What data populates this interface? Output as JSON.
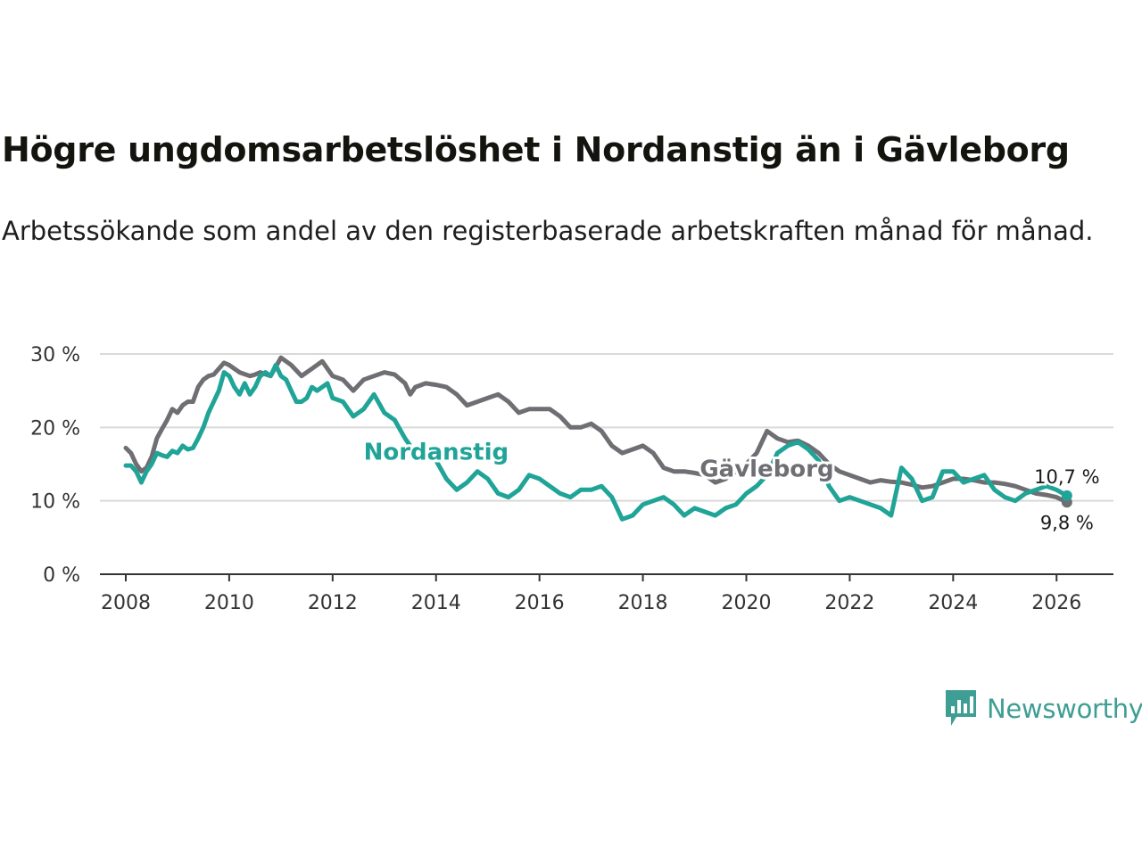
{
  "title": "Högre ungdomsarbetslöshet i Nordanstig än i Gävleborg",
  "subtitle": "Arbetssökande som andel av den registerbaserade arbetskraften månad för månad.",
  "brand": {
    "name": "Newsworthy",
    "color": "#3f9e93"
  },
  "chart_data": {
    "type": "line",
    "title": "Högre ungdomsarbetslöshet i Nordanstig än i Gävleborg",
    "xlabel": "",
    "ylabel": "",
    "ylim": [
      0,
      30
    ],
    "xlim": [
      2007.5,
      2027.1
    ],
    "y_ticks": [
      0,
      10,
      20,
      30
    ],
    "y_tick_labels": [
      "0 %",
      "10 %",
      "20 %",
      "30 %"
    ],
    "x_ticks": [
      2008,
      2010,
      2012,
      2014,
      2016,
      2018,
      2020,
      2022,
      2024,
      2026
    ],
    "x_tick_labels": [
      "2008",
      "2010",
      "2012",
      "2014",
      "2016",
      "2018",
      "2020",
      "2022",
      "2024",
      "2026"
    ],
    "grid": true,
    "end_labels": {
      "Nordanstig": "10,7 %",
      "Gävleborg": "9,8 %"
    },
    "series": [
      {
        "name": "Gävleborg",
        "label": "Gävleborg",
        "color": "#6e6e73",
        "x": [
          2008.0,
          2008.1,
          2008.2,
          2008.3,
          2008.4,
          2008.5,
          2008.6,
          2008.7,
          2008.8,
          2008.9,
          2009.0,
          2009.1,
          2009.2,
          2009.3,
          2009.4,
          2009.5,
          2009.6,
          2009.7,
          2009.8,
          2009.9,
          2010.0,
          2010.2,
          2010.4,
          2010.5,
          2010.6,
          2010.8,
          2011.0,
          2011.2,
          2011.4,
          2011.5,
          2011.6,
          2011.8,
          2012.0,
          2012.2,
          2012.4,
          2012.6,
          2012.8,
          2013.0,
          2013.2,
          2013.4,
          2013.5,
          2013.6,
          2013.8,
          2014.0,
          2014.2,
          2014.4,
          2014.6,
          2014.8,
          2015.0,
          2015.2,
          2015.4,
          2015.6,
          2015.8,
          2016.0,
          2016.2,
          2016.4,
          2016.6,
          2016.8,
          2017.0,
          2017.2,
          2017.4,
          2017.6,
          2017.8,
          2018.0,
          2018.2,
          2018.4,
          2018.6,
          2018.8,
          2019.0,
          2019.2,
          2019.4,
          2019.6,
          2019.8,
          2020.0,
          2020.2,
          2020.4,
          2020.6,
          2020.8,
          2021.0,
          2021.2,
          2021.4,
          2021.6,
          2021.8,
          2022.0,
          2022.2,
          2022.4,
          2022.6,
          2022.8,
          2023.0,
          2023.2,
          2023.4,
          2023.6,
          2023.8,
          2024.0,
          2024.2,
          2024.4,
          2024.6,
          2024.8,
          2025.0,
          2025.2,
          2025.4,
          2025.6,
          2025.8,
          2026.0,
          2026.2
        ],
        "values": [
          17.2,
          16.5,
          15.0,
          14.0,
          14.5,
          16.0,
          18.5,
          19.8,
          21.0,
          22.5,
          22.0,
          23.0,
          23.5,
          23.5,
          25.5,
          26.5,
          27.0,
          27.2,
          28.0,
          28.8,
          28.5,
          27.5,
          27.0,
          27.2,
          27.5,
          27.0,
          29.5,
          28.5,
          27.0,
          27.5,
          28.0,
          29.0,
          27.0,
          26.5,
          25.0,
          26.5,
          27.0,
          27.5,
          27.2,
          26.0,
          24.5,
          25.5,
          26.0,
          25.8,
          25.5,
          24.5,
          23.0,
          23.5,
          24.0,
          24.5,
          23.5,
          22.0,
          22.5,
          22.5,
          22.5,
          21.5,
          20.0,
          20.0,
          20.5,
          19.5,
          17.5,
          16.5,
          17.0,
          17.5,
          16.5,
          14.5,
          14.0,
          14.0,
          13.8,
          13.5,
          12.5,
          13.0,
          14.0,
          15.0,
          16.5,
          19.5,
          18.5,
          18.0,
          18.2,
          17.5,
          16.5,
          15.0,
          14.0,
          13.5,
          13.0,
          12.5,
          12.8,
          12.6,
          12.5,
          12.2,
          11.8,
          12.0,
          12.5,
          13.0,
          13.0,
          12.8,
          12.5,
          12.5,
          12.3,
          12.0,
          11.5,
          11.0,
          10.8,
          10.5,
          9.8
        ]
      },
      {
        "name": "Nordanstig",
        "label": "Nordanstig",
        "color": "#1fa497",
        "x": [
          2008.0,
          2008.1,
          2008.2,
          2008.3,
          2008.4,
          2008.5,
          2008.6,
          2008.7,
          2008.8,
          2008.9,
          2009.0,
          2009.1,
          2009.2,
          2009.3,
          2009.4,
          2009.5,
          2009.6,
          2009.7,
          2009.8,
          2009.9,
          2010.0,
          2010.1,
          2010.2,
          2010.3,
          2010.4,
          2010.5,
          2010.6,
          2010.7,
          2010.8,
          2010.9,
          2011.0,
          2011.1,
          2011.2,
          2011.3,
          2011.4,
          2011.5,
          2011.6,
          2011.7,
          2011.8,
          2011.9,
          2012.0,
          2012.2,
          2012.4,
          2012.6,
          2012.8,
          2013.0,
          2013.2,
          2013.4,
          2013.6,
          2013.8,
          2014.0,
          2014.2,
          2014.4,
          2014.6,
          2014.8,
          2015.0,
          2015.2,
          2015.4,
          2015.6,
          2015.8,
          2016.0,
          2016.2,
          2016.4,
          2016.6,
          2016.8,
          2017.0,
          2017.2,
          2017.4,
          2017.6,
          2017.8,
          2018.0,
          2018.2,
          2018.4,
          2018.6,
          2018.8,
          2019.0,
          2019.2,
          2019.4,
          2019.6,
          2019.8,
          2020.0,
          2020.2,
          2020.4,
          2020.6,
          2020.8,
          2021.0,
          2021.2,
          2021.4,
          2021.6,
          2021.8,
          2022.0,
          2022.2,
          2022.4,
          2022.6,
          2022.8,
          2023.0,
          2023.2,
          2023.4,
          2023.6,
          2023.8,
          2024.0,
          2024.2,
          2024.4,
          2024.6,
          2024.8,
          2025.0,
          2025.2,
          2025.4,
          2025.6,
          2025.8,
          2026.0,
          2026.2
        ],
        "values": [
          14.8,
          14.8,
          14.0,
          12.5,
          14.0,
          15.0,
          16.5,
          16.2,
          16.0,
          16.8,
          16.5,
          17.5,
          17.0,
          17.2,
          18.5,
          20.0,
          22.0,
          23.5,
          25.0,
          27.5,
          27.0,
          25.5,
          24.5,
          26.0,
          24.5,
          25.5,
          27.0,
          27.5,
          27.0,
          28.5,
          27.0,
          26.5,
          25.0,
          23.5,
          23.5,
          24.0,
          25.5,
          25.0,
          25.5,
          26.0,
          24.0,
          23.5,
          21.5,
          22.5,
          24.5,
          22.0,
          21.0,
          18.5,
          16.5,
          17.5,
          15.5,
          13.0,
          11.5,
          12.5,
          14.0,
          13.0,
          11.0,
          10.5,
          11.5,
          13.5,
          13.0,
          12.0,
          11.0,
          10.5,
          11.5,
          11.5,
          12.0,
          10.5,
          7.5,
          8.0,
          9.5,
          10.0,
          10.5,
          9.5,
          8.0,
          9.0,
          8.5,
          8.0,
          9.0,
          9.5,
          11.0,
          12.0,
          13.5,
          16.5,
          17.5,
          18.0,
          17.0,
          15.5,
          12.0,
          10.0,
          10.5,
          10.0,
          9.5,
          9.0,
          8.0,
          14.5,
          13.0,
          10.0,
          10.5,
          14.0,
          14.0,
          12.5,
          13.0,
          13.5,
          11.5,
          10.5,
          10.0,
          11.0,
          11.5,
          12.0,
          11.5,
          10.7
        ]
      }
    ]
  }
}
